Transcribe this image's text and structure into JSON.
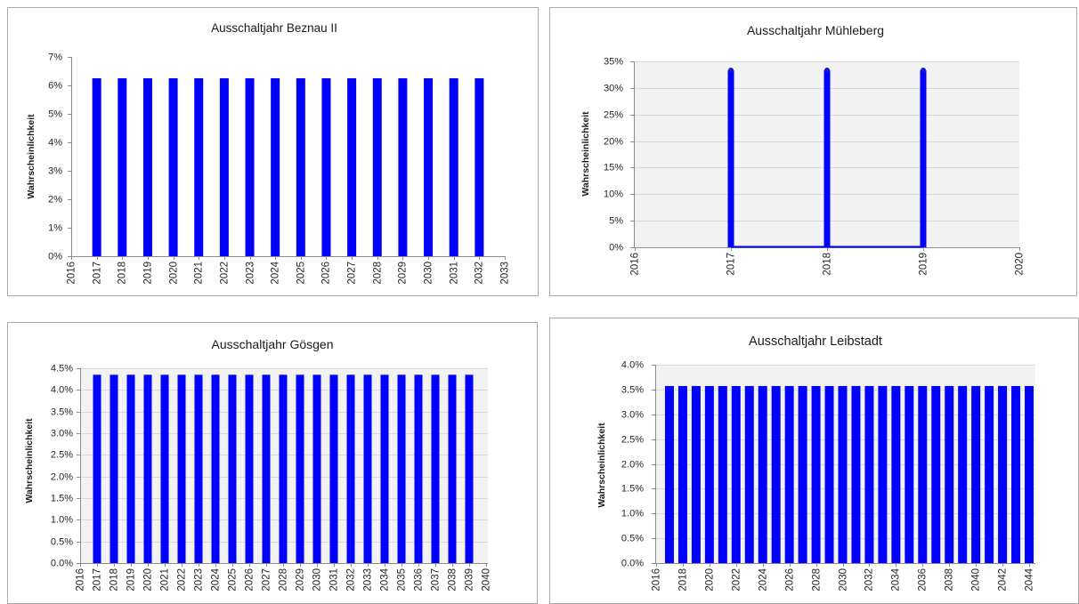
{
  "chart_data": [
    {
      "type": "bar",
      "title": "Ausschaltjahr Beznau II",
      "xlabel": "",
      "ylabel": "Wahrscheinlichkeit",
      "x": [
        2017,
        2018,
        2019,
        2020,
        2021,
        2022,
        2023,
        2024,
        2025,
        2026,
        2027,
        2028,
        2029,
        2030,
        2031,
        2032
      ],
      "values": [
        6.25,
        6.25,
        6.25,
        6.25,
        6.25,
        6.25,
        6.25,
        6.25,
        6.25,
        6.25,
        6.25,
        6.25,
        6.25,
        6.25,
        6.25,
        6.25
      ],
      "xlim": [
        2016,
        2033
      ],
      "ylim": [
        0,
        7
      ],
      "xticks": [
        2016,
        2017,
        2018,
        2019,
        2020,
        2021,
        2022,
        2023,
        2024,
        2025,
        2026,
        2027,
        2028,
        2029,
        2030,
        2031,
        2032,
        2033
      ],
      "yticks": [
        0,
        1,
        2,
        3,
        4,
        5,
        6,
        7
      ],
      "ytick_labels": [
        "0%",
        "1%",
        "2%",
        "3%",
        "4%",
        "5%",
        "6%",
        "7%"
      ],
      "grid": false,
      "bar_color": "#0000FF",
      "plot_background": "#FFFFFF"
    },
    {
      "type": "bar",
      "title": "Ausschaltjahr Mühleberg",
      "xlabel": "",
      "ylabel": "Wahrscheinlichkeit",
      "x": [
        2017,
        2018,
        2019
      ],
      "values": [
        33.33,
        33.33,
        33.33
      ],
      "xlim": [
        2016,
        2020
      ],
      "ylim": [
        0,
        35
      ],
      "xticks": [
        2016,
        2017,
        2018,
        2019,
        2020
      ],
      "yticks": [
        0,
        5,
        10,
        15,
        20,
        25,
        30,
        35
      ],
      "ytick_labels": [
        "0%",
        "5%",
        "10%",
        "15%",
        "20%",
        "25%",
        "30%",
        "35%"
      ],
      "grid": true,
      "bar_color": "#0000FF",
      "plot_background": "#F2F2F2"
    },
    {
      "type": "bar",
      "title": "Ausschaltjahr Gösgen",
      "xlabel": "",
      "ylabel": "Wahrscheinlichkeit",
      "x": [
        2017,
        2018,
        2019,
        2020,
        2021,
        2022,
        2023,
        2024,
        2025,
        2026,
        2027,
        2028,
        2029,
        2030,
        2031,
        2032,
        2033,
        2034,
        2035,
        2036,
        2037,
        2038,
        2039
      ],
      "values": [
        4.35,
        4.35,
        4.35,
        4.35,
        4.35,
        4.35,
        4.35,
        4.35,
        4.35,
        4.35,
        4.35,
        4.35,
        4.35,
        4.35,
        4.35,
        4.35,
        4.35,
        4.35,
        4.35,
        4.35,
        4.35,
        4.35,
        4.35
      ],
      "xlim": [
        2016,
        2040
      ],
      "ylim": [
        0,
        4.5
      ],
      "xticks": [
        2016,
        2017,
        2018,
        2019,
        2020,
        2021,
        2022,
        2023,
        2024,
        2025,
        2026,
        2027,
        2028,
        2029,
        2030,
        2031,
        2032,
        2033,
        2034,
        2035,
        2036,
        2037,
        2038,
        2039,
        2040
      ],
      "yticks": [
        0,
        0.5,
        1,
        1.5,
        2,
        2.5,
        3,
        3.5,
        4,
        4.5
      ],
      "ytick_labels": [
        "0.0%",
        "0.5%",
        "1.0%",
        "1.5%",
        "2.0%",
        "2.5%",
        "3.0%",
        "3.5%",
        "4.0%",
        "4.5%"
      ],
      "grid": true,
      "bar_color": "#0000FF",
      "plot_background": "#F2F2F2"
    },
    {
      "type": "bar",
      "title": "Ausschaltjahr Leibstadt",
      "xlabel": "",
      "ylabel": "Wahrscheinlichkeit",
      "x": [
        2017,
        2018,
        2019,
        2020,
        2021,
        2022,
        2023,
        2024,
        2025,
        2026,
        2027,
        2028,
        2029,
        2030,
        2031,
        2032,
        2033,
        2034,
        2035,
        2036,
        2037,
        2038,
        2039,
        2040,
        2041,
        2042,
        2043,
        2044
      ],
      "values": [
        3.57,
        3.57,
        3.57,
        3.57,
        3.57,
        3.57,
        3.57,
        3.57,
        3.57,
        3.57,
        3.57,
        3.57,
        3.57,
        3.57,
        3.57,
        3.57,
        3.57,
        3.57,
        3.57,
        3.57,
        3.57,
        3.57,
        3.57,
        3.57,
        3.57,
        3.57,
        3.57,
        3.57
      ],
      "xlim": [
        2016,
        2044
      ],
      "ylim": [
        0,
        4
      ],
      "xticks": [
        2016,
        2018,
        2020,
        2022,
        2024,
        2026,
        2028,
        2030,
        2032,
        2034,
        2036,
        2038,
        2040,
        2042,
        2044
      ],
      "yticks": [
        0,
        0.5,
        1,
        1.5,
        2,
        2.5,
        3,
        3.5,
        4
      ],
      "ytick_labels": [
        "0.0%",
        "0.5%",
        "1.0%",
        "1.5%",
        "2.0%",
        "2.5%",
        "3.0%",
        "3.5%",
        "4.0%"
      ],
      "grid": true,
      "bar_color": "#0000FF",
      "plot_background": "#F2F2F2"
    }
  ]
}
